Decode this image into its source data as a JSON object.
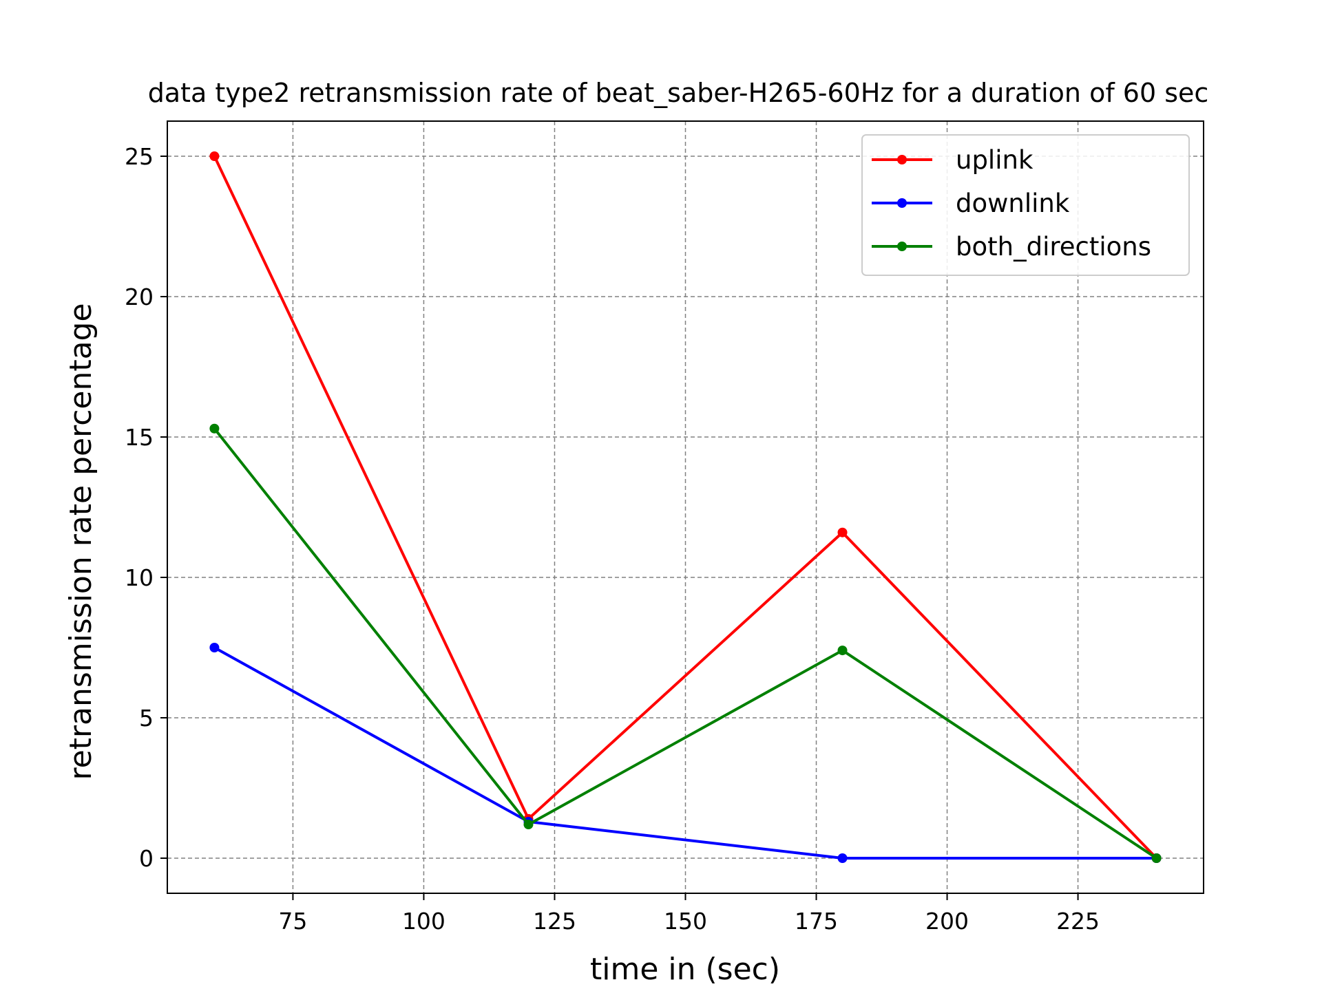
{
  "chart_data": {
    "type": "line",
    "title": "data type2 retransmission rate of beat_saber-H265-60Hz for a duration of 60 sec",
    "xlabel": "time in (sec)",
    "ylabel": "retransmission rate percentage",
    "x": [
      60,
      120,
      180,
      240
    ],
    "xlim": [
      51,
      249
    ],
    "ylim": [
      -1.25,
      26.25
    ],
    "xticks": [
      75,
      100,
      125,
      150,
      175,
      200,
      225
    ],
    "yticks": [
      0,
      5,
      10,
      15,
      20,
      25
    ],
    "grid": true,
    "legend_position": "top-right",
    "series": [
      {
        "name": "uplink",
        "color": "#ff0000",
        "values": [
          25.0,
          1.4,
          11.6,
          0.0
        ]
      },
      {
        "name": "downlink",
        "color": "#0000ff",
        "values": [
          7.5,
          1.3,
          0.0,
          0.0
        ]
      },
      {
        "name": "both_directions",
        "color": "#008000",
        "values": [
          15.3,
          1.2,
          7.4,
          0.0
        ]
      }
    ]
  }
}
